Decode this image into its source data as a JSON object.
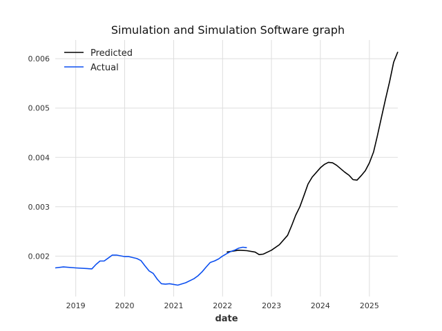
{
  "chart_data": {
    "type": "line",
    "title": "Simulation and Simulation Software graph",
    "xlabel": "date",
    "ylabel": "",
    "x_axis": "date",
    "xlim": [
      "2018-08-01",
      "2025-08-01"
    ],
    "ylim": [
      0.00118,
      0.00638
    ],
    "grid": true,
    "legend_position": "top-left",
    "x_ticks": [
      {
        "date": "2019-01-01",
        "label": "2019"
      },
      {
        "date": "2020-01-01",
        "label": "2020"
      },
      {
        "date": "2021-01-01",
        "label": "2021"
      },
      {
        "date": "2022-01-01",
        "label": "2022"
      },
      {
        "date": "2023-01-01",
        "label": "2023"
      },
      {
        "date": "2024-01-01",
        "label": "2024"
      },
      {
        "date": "2025-01-01",
        "label": "2025"
      }
    ],
    "y_ticks": [
      {
        "value": 0.002,
        "label": "0.002"
      },
      {
        "value": 0.003,
        "label": "0.003"
      },
      {
        "value": 0.004,
        "label": "0.004"
      },
      {
        "value": 0.005,
        "label": "0.005"
      },
      {
        "value": 0.006,
        "label": "0.006"
      }
    ],
    "series": [
      {
        "name": "Predicted",
        "color": "#000000",
        "points": [
          {
            "x": "2022-02-01",
            "y": 0.00208
          },
          {
            "x": "2022-05-01",
            "y": 0.00212
          },
          {
            "x": "2022-07-01",
            "y": 0.00211
          },
          {
            "x": "2022-09-01",
            "y": 0.00208
          },
          {
            "x": "2022-10-01",
            "y": 0.00203
          },
          {
            "x": "2022-11-01",
            "y": 0.00204
          },
          {
            "x": "2023-01-01",
            "y": 0.00212
          },
          {
            "x": "2023-03-01",
            "y": 0.00223
          },
          {
            "x": "2023-05-01",
            "y": 0.00242
          },
          {
            "x": "2023-06-01",
            "y": 0.00262
          },
          {
            "x": "2023-07-01",
            "y": 0.00283
          },
          {
            "x": "2023-08-01",
            "y": 0.003
          },
          {
            "x": "2023-09-01",
            "y": 0.00323
          },
          {
            "x": "2023-10-01",
            "y": 0.00346
          },
          {
            "x": "2023-11-01",
            "y": 0.0036
          },
          {
            "x": "2024-01-01",
            "y": 0.00379
          },
          {
            "x": "2024-02-01",
            "y": 0.00386
          },
          {
            "x": "2024-03-01",
            "y": 0.0039
          },
          {
            "x": "2024-04-01",
            "y": 0.00389
          },
          {
            "x": "2024-05-01",
            "y": 0.00384
          },
          {
            "x": "2024-07-01",
            "y": 0.0037
          },
          {
            "x": "2024-08-01",
            "y": 0.00364
          },
          {
            "x": "2024-09-01",
            "y": 0.00355
          },
          {
            "x": "2024-10-01",
            "y": 0.00354
          },
          {
            "x": "2024-11-01",
            "y": 0.00363
          },
          {
            "x": "2024-12-01",
            "y": 0.00373
          },
          {
            "x": "2025-01-01",
            "y": 0.00389
          },
          {
            "x": "2025-02-01",
            "y": 0.00411
          },
          {
            "x": "2025-03-01",
            "y": 0.00443
          },
          {
            "x": "2025-04-01",
            "y": 0.00481
          },
          {
            "x": "2025-05-01",
            "y": 0.00518
          },
          {
            "x": "2025-06-01",
            "y": 0.00554
          },
          {
            "x": "2025-07-01",
            "y": 0.00593
          },
          {
            "x": "2025-08-01",
            "y": 0.00614
          }
        ]
      },
      {
        "name": "Actual",
        "color": "#0a4ef0",
        "points": [
          {
            "x": "2018-08-01",
            "y": 0.00176
          },
          {
            "x": "2018-10-01",
            "y": 0.00178
          },
          {
            "x": "2019-01-01",
            "y": 0.00176
          },
          {
            "x": "2019-05-01",
            "y": 0.00174
          },
          {
            "x": "2019-06-01",
            "y": 0.00183
          },
          {
            "x": "2019-07-01",
            "y": 0.0019
          },
          {
            "x": "2019-08-01",
            "y": 0.0019
          },
          {
            "x": "2019-09-01",
            "y": 0.00196
          },
          {
            "x": "2019-10-01",
            "y": 0.00202
          },
          {
            "x": "2019-11-01",
            "y": 0.00202
          },
          {
            "x": "2020-01-01",
            "y": 0.00199
          },
          {
            "x": "2020-02-01",
            "y": 0.00199
          },
          {
            "x": "2020-04-01",
            "y": 0.00195
          },
          {
            "x": "2020-05-01",
            "y": 0.00191
          },
          {
            "x": "2020-06-01",
            "y": 0.0018
          },
          {
            "x": "2020-07-01",
            "y": 0.0017
          },
          {
            "x": "2020-08-01",
            "y": 0.00165
          },
          {
            "x": "2020-09-01",
            "y": 0.00153
          },
          {
            "x": "2020-10-01",
            "y": 0.00144
          },
          {
            "x": "2020-11-01",
            "y": 0.00143
          },
          {
            "x": "2020-12-01",
            "y": 0.00144
          },
          {
            "x": "2021-02-01",
            "y": 0.00141
          },
          {
            "x": "2021-04-01",
            "y": 0.00146
          },
          {
            "x": "2021-06-01",
            "y": 0.00154
          },
          {
            "x": "2021-07-01",
            "y": 0.0016
          },
          {
            "x": "2021-08-01",
            "y": 0.00168
          },
          {
            "x": "2021-09-01",
            "y": 0.00178
          },
          {
            "x": "2021-10-01",
            "y": 0.00187
          },
          {
            "x": "2021-11-01",
            "y": 0.0019
          },
          {
            "x": "2021-12-01",
            "y": 0.00194
          },
          {
            "x": "2022-01-01",
            "y": 0.002
          },
          {
            "x": "2022-02-01",
            "y": 0.00205
          },
          {
            "x": "2022-03-01",
            "y": 0.00209
          },
          {
            "x": "2022-04-01",
            "y": 0.00212
          },
          {
            "x": "2022-05-01",
            "y": 0.00216
          },
          {
            "x": "2022-06-01",
            "y": 0.00218
          },
          {
            "x": "2022-07-01",
            "y": 0.00217
          }
        ]
      }
    ]
  }
}
